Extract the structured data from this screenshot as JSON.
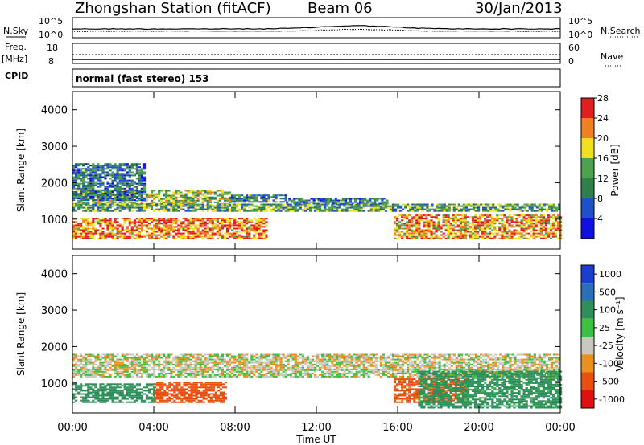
{
  "header": {
    "station_title": "Zhongshan Station (fitACF)",
    "beam": "Beam 06",
    "date": "30/Jan/2013"
  },
  "top_panels": {
    "nsky_label": "N.Sky",
    "nsky_ticks": [
      "10^5",
      "10^0"
    ],
    "nsearch_label": "N.Search",
    "nsearch_ticks": [
      "10^5",
      "10^0"
    ],
    "freq_label_1": "Freq.",
    "freq_label_2": "[MHz]",
    "freq_ticks": [
      "18",
      "8"
    ],
    "nave_label": "Nave",
    "nave_ticks": [
      "60",
      "0"
    ],
    "cpid_label": "CPID",
    "cpid_text": "normal (fast stereo) 153"
  },
  "chart_data": [
    {
      "type": "heatmap",
      "panel": "power",
      "ylabel": "Slant Range [km]",
      "ylim": [
        180,
        4500
      ],
      "yticks": [
        "1000",
        "2000",
        "3000",
        "4000"
      ],
      "xlim": [
        "00:00",
        "24:00"
      ],
      "colorbar_label": "Power [dB]",
      "colorbar_ticks": [
        "4",
        "8",
        "12",
        "16",
        "20",
        "24",
        "28"
      ],
      "colorbar_colors": [
        "#1010e0",
        "#2050c8",
        "#2f7f4a",
        "#4fa04f",
        "#f0e020",
        "#f08020",
        "#e02020"
      ],
      "colorbar_range": [
        0,
        30
      ],
      "echo_bands": [
        {
          "t0": 0,
          "t1": 7.8,
          "r0": 1350,
          "r1": 1800,
          "level": 0.55
        },
        {
          "t0": 7.8,
          "t1": 10.5,
          "r0": 1450,
          "r1": 1650,
          "level": 0.35
        },
        {
          "t0": 10.5,
          "t1": 15.5,
          "r0": 1400,
          "r1": 1550,
          "level": 0.3
        },
        {
          "t0": 0,
          "t1": 24,
          "r0": 1200,
          "r1": 1400,
          "level": 0.45
        },
        {
          "t0": 0,
          "t1": 9.5,
          "r0": 450,
          "r1": 1000,
          "level": 0.8
        },
        {
          "t0": 15.8,
          "t1": 24,
          "r0": 450,
          "r1": 1100,
          "level": 0.75
        },
        {
          "t0": 0,
          "t1": 3.5,
          "r0": 1500,
          "r1": 2500,
          "level": 0.3
        }
      ]
    },
    {
      "type": "heatmap",
      "panel": "velocity",
      "ylabel": "Slant Range [km]",
      "ylim": [
        180,
        4500
      ],
      "yticks": [
        "1000",
        "2000",
        "3000",
        "4000"
      ],
      "xlim": [
        "00:00",
        "24:00"
      ],
      "xticks": [
        "00:00",
        "04:00",
        "08:00",
        "12:00",
        "16:00",
        "20:00",
        "00:00"
      ],
      "xlabel": "Time UT",
      "colorbar_label": "Velocity [m s⁻¹]",
      "colorbar_ticks": [
        "1000",
        "500",
        "100",
        "25",
        "-25",
        "-100",
        "-500",
        "-1000"
      ],
      "colorbar_colors": [
        "#1a3fd0",
        "#2a6fb8",
        "#2f8f5a",
        "#3fbf3f",
        "#c8c8c0",
        "#e89020",
        "#e85010",
        "#e01010"
      ],
      "echo_bands": [
        {
          "t0": 0,
          "t1": 24,
          "r0": 1350,
          "r1": 1800,
          "v": -5
        },
        {
          "t0": 0,
          "t1": 24,
          "r0": 1150,
          "r1": 1350,
          "v": 10
        },
        {
          "t0": 0,
          "t1": 4,
          "r0": 450,
          "r1": 950,
          "v": 200
        },
        {
          "t0": 4,
          "t1": 7.5,
          "r0": 450,
          "r1": 1000,
          "v": -200
        },
        {
          "t0": 15.8,
          "t1": 19.5,
          "r0": 450,
          "r1": 1100,
          "v": -150
        },
        {
          "t0": 17,
          "t1": 24,
          "r0": 300,
          "r1": 1300,
          "v": 150
        }
      ]
    }
  ]
}
